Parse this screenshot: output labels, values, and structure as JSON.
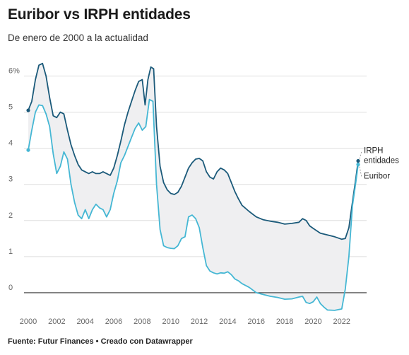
{
  "title": "Euribor vs IRPH entidades",
  "subtitle": "De enero de 2000 a la actualidad",
  "source": "Fuente: Futur Finances • Creado con Datawrapper",
  "colors": {
    "irph": "#1b5a7a",
    "euribor": "#45b7d4",
    "area": "#efeff1",
    "grid": "#dedede",
    "zero": "#333333"
  },
  "chart_data": {
    "type": "line",
    "title": "Euribor vs IRPH entidades",
    "subtitle": "De enero de 2000 a la actualidad",
    "xlabel": "",
    "ylabel": "",
    "xlim": [
      2000,
      2023.2
    ],
    "ylim": [
      -0.55,
      6.5
    ],
    "x_ticks": [
      {
        "value": 2000,
        "label": "2000"
      },
      {
        "value": 2002,
        "label": "2002"
      },
      {
        "value": 2004,
        "label": "2004"
      },
      {
        "value": 2006,
        "label": "2006"
      },
      {
        "value": 2008,
        "label": "2008"
      },
      {
        "value": 2010,
        "label": "2010"
      },
      {
        "value": 2012,
        "label": "2012"
      },
      {
        "value": 2014,
        "label": "2014"
      },
      {
        "value": 2016,
        "label": "2016"
      },
      {
        "value": 2018,
        "label": "2018"
      },
      {
        "value": 2020,
        "label": "2020"
      },
      {
        "value": 2022,
        "label": "2022"
      }
    ],
    "y_ticks": [
      {
        "value": 0,
        "label": "0"
      },
      {
        "value": 1,
        "label": "1"
      },
      {
        "value": 2,
        "label": "2"
      },
      {
        "value": 3,
        "label": "3"
      },
      {
        "value": 4,
        "label": "4"
      },
      {
        "value": 5,
        "label": "5"
      },
      {
        "value": 6,
        "label": "6%"
      }
    ],
    "grid": true,
    "legend": "direct labels at line ends",
    "series": [
      {
        "name": "IRPH entidades",
        "label_lines": [
          "IRPH",
          "entidades"
        ],
        "color": "#1b5a7a",
        "points": [
          [
            2000.0,
            5.05
          ],
          [
            2000.25,
            5.3
          ],
          [
            2000.5,
            5.9
          ],
          [
            2000.75,
            6.3
          ],
          [
            2001.0,
            6.35
          ],
          [
            2001.25,
            6.0
          ],
          [
            2001.5,
            5.4
          ],
          [
            2001.75,
            4.9
          ],
          [
            2002.0,
            4.85
          ],
          [
            2002.25,
            5.0
          ],
          [
            2002.5,
            4.95
          ],
          [
            2002.75,
            4.5
          ],
          [
            2003.0,
            4.1
          ],
          [
            2003.25,
            3.8
          ],
          [
            2003.5,
            3.55
          ],
          [
            2003.75,
            3.4
          ],
          [
            2004.0,
            3.35
          ],
          [
            2004.25,
            3.3
          ],
          [
            2004.5,
            3.35
          ],
          [
            2004.75,
            3.3
          ],
          [
            2005.0,
            3.3
          ],
          [
            2005.25,
            3.35
          ],
          [
            2005.5,
            3.3
          ],
          [
            2005.75,
            3.25
          ],
          [
            2006.0,
            3.45
          ],
          [
            2006.25,
            3.8
          ],
          [
            2006.5,
            4.2
          ],
          [
            2006.75,
            4.65
          ],
          [
            2007.0,
            5.0
          ],
          [
            2007.25,
            5.3
          ],
          [
            2007.5,
            5.6
          ],
          [
            2007.75,
            5.85
          ],
          [
            2008.0,
            5.9
          ],
          [
            2008.2,
            5.2
          ],
          [
            2008.4,
            5.9
          ],
          [
            2008.6,
            6.25
          ],
          [
            2008.8,
            6.2
          ],
          [
            2009.0,
            4.6
          ],
          [
            2009.25,
            3.5
          ],
          [
            2009.5,
            3.05
          ],
          [
            2009.75,
            2.85
          ],
          [
            2010.0,
            2.75
          ],
          [
            2010.25,
            2.72
          ],
          [
            2010.5,
            2.78
          ],
          [
            2010.75,
            2.95
          ],
          [
            2011.0,
            3.2
          ],
          [
            2011.25,
            3.45
          ],
          [
            2011.5,
            3.6
          ],
          [
            2011.75,
            3.7
          ],
          [
            2012.0,
            3.72
          ],
          [
            2012.25,
            3.65
          ],
          [
            2012.5,
            3.35
          ],
          [
            2012.75,
            3.2
          ],
          [
            2013.0,
            3.15
          ],
          [
            2013.25,
            3.35
          ],
          [
            2013.5,
            3.45
          ],
          [
            2013.75,
            3.4
          ],
          [
            2014.0,
            3.3
          ],
          [
            2014.25,
            3.05
          ],
          [
            2014.5,
            2.8
          ],
          [
            2014.75,
            2.6
          ],
          [
            2015.0,
            2.42
          ],
          [
            2015.5,
            2.25
          ],
          [
            2016.0,
            2.1
          ],
          [
            2016.5,
            2.02
          ],
          [
            2017.0,
            1.98
          ],
          [
            2017.5,
            1.95
          ],
          [
            2018.0,
            1.9
          ],
          [
            2018.5,
            1.92
          ],
          [
            2019.0,
            1.95
          ],
          [
            2019.25,
            2.05
          ],
          [
            2019.5,
            2.0
          ],
          [
            2019.75,
            1.85
          ],
          [
            2020.0,
            1.78
          ],
          [
            2020.5,
            1.65
          ],
          [
            2021.0,
            1.6
          ],
          [
            2021.5,
            1.55
          ],
          [
            2022.0,
            1.48
          ],
          [
            2022.25,
            1.5
          ],
          [
            2022.5,
            1.8
          ],
          [
            2022.75,
            2.5
          ],
          [
            2023.0,
            3.2
          ],
          [
            2023.15,
            3.65
          ]
        ]
      },
      {
        "name": "Euribor",
        "label_lines": [
          "Euribor"
        ],
        "color": "#45b7d4",
        "points": [
          [
            2000.0,
            3.95
          ],
          [
            2000.25,
            4.5
          ],
          [
            2000.5,
            5.0
          ],
          [
            2000.75,
            5.2
          ],
          [
            2001.0,
            5.18
          ],
          [
            2001.25,
            4.95
          ],
          [
            2001.5,
            4.6
          ],
          [
            2001.75,
            3.85
          ],
          [
            2002.0,
            3.3
          ],
          [
            2002.25,
            3.5
          ],
          [
            2002.5,
            3.9
          ],
          [
            2002.75,
            3.7
          ],
          [
            2003.0,
            3.0
          ],
          [
            2003.25,
            2.5
          ],
          [
            2003.5,
            2.15
          ],
          [
            2003.75,
            2.05
          ],
          [
            2004.0,
            2.3
          ],
          [
            2004.25,
            2.05
          ],
          [
            2004.5,
            2.3
          ],
          [
            2004.75,
            2.45
          ],
          [
            2005.0,
            2.35
          ],
          [
            2005.25,
            2.3
          ],
          [
            2005.5,
            2.1
          ],
          [
            2005.75,
            2.3
          ],
          [
            2006.0,
            2.75
          ],
          [
            2006.25,
            3.1
          ],
          [
            2006.5,
            3.6
          ],
          [
            2006.75,
            3.8
          ],
          [
            2007.0,
            4.05
          ],
          [
            2007.25,
            4.3
          ],
          [
            2007.5,
            4.55
          ],
          [
            2007.75,
            4.7
          ],
          [
            2008.0,
            4.5
          ],
          [
            2008.25,
            4.6
          ],
          [
            2008.5,
            5.35
          ],
          [
            2008.75,
            5.3
          ],
          [
            2009.0,
            3.0
          ],
          [
            2009.25,
            1.75
          ],
          [
            2009.5,
            1.3
          ],
          [
            2009.75,
            1.25
          ],
          [
            2010.0,
            1.23
          ],
          [
            2010.25,
            1.22
          ],
          [
            2010.5,
            1.3
          ],
          [
            2010.75,
            1.5
          ],
          [
            2011.0,
            1.55
          ],
          [
            2011.25,
            2.1
          ],
          [
            2011.5,
            2.15
          ],
          [
            2011.75,
            2.05
          ],
          [
            2012.0,
            1.8
          ],
          [
            2012.25,
            1.25
          ],
          [
            2012.5,
            0.75
          ],
          [
            2012.75,
            0.6
          ],
          [
            2013.0,
            0.55
          ],
          [
            2013.25,
            0.52
          ],
          [
            2013.5,
            0.55
          ],
          [
            2013.75,
            0.54
          ],
          [
            2014.0,
            0.58
          ],
          [
            2014.25,
            0.5
          ],
          [
            2014.5,
            0.38
          ],
          [
            2014.75,
            0.33
          ],
          [
            2015.0,
            0.25
          ],
          [
            2015.5,
            0.15
          ],
          [
            2016.0,
            0.0
          ],
          [
            2016.5,
            -0.05
          ],
          [
            2017.0,
            -0.1
          ],
          [
            2017.5,
            -0.13
          ],
          [
            2018.0,
            -0.18
          ],
          [
            2018.5,
            -0.17
          ],
          [
            2019.0,
            -0.12
          ],
          [
            2019.25,
            -0.1
          ],
          [
            2019.5,
            -0.27
          ],
          [
            2019.75,
            -0.3
          ],
          [
            2020.0,
            -0.25
          ],
          [
            2020.25,
            -0.12
          ],
          [
            2020.5,
            -0.3
          ],
          [
            2020.75,
            -0.4
          ],
          [
            2021.0,
            -0.48
          ],
          [
            2021.5,
            -0.49
          ],
          [
            2022.0,
            -0.45
          ],
          [
            2022.25,
            0.1
          ],
          [
            2022.5,
            1.0
          ],
          [
            2022.75,
            2.4
          ],
          [
            2023.0,
            3.1
          ],
          [
            2023.15,
            3.55
          ]
        ]
      }
    ]
  }
}
